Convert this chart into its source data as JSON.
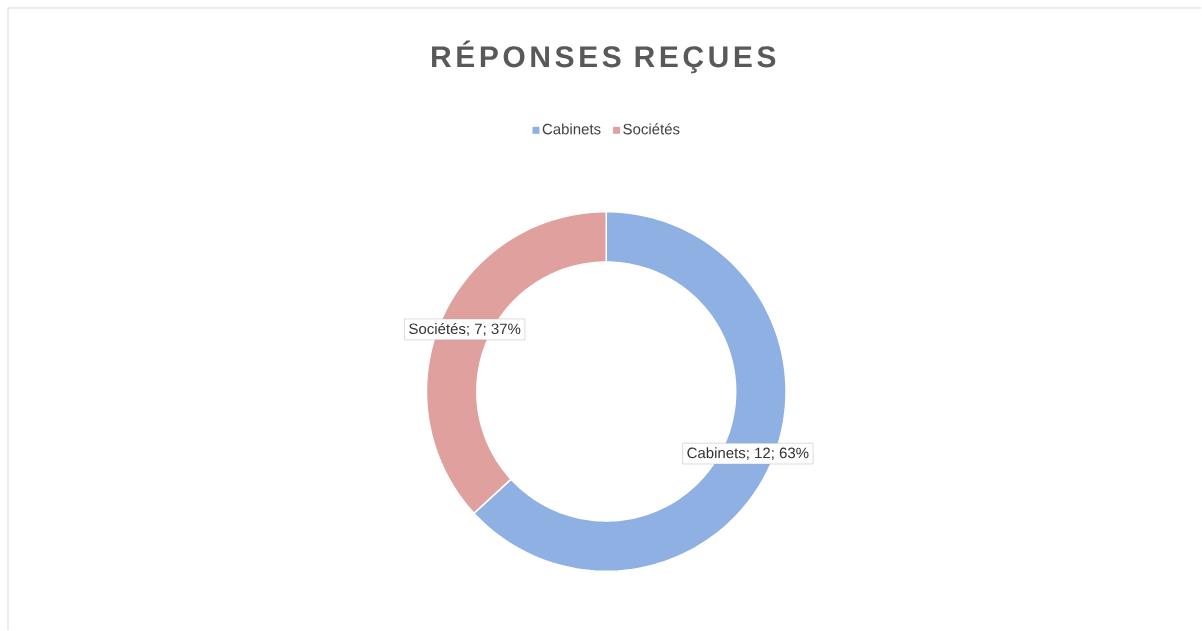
{
  "chart_data": {
    "type": "donut",
    "title": "RÉPONSES REÇUES",
    "categories": [
      "Cabinets",
      "Sociétés"
    ],
    "values": [
      12,
      7
    ],
    "colors": [
      "#8fb0e3",
      "#e0a09e"
    ],
    "value_labels": [
      "Cabinets; 12; 63%",
      "Sociétés; 7; 37%"
    ],
    "legend": "top"
  }
}
